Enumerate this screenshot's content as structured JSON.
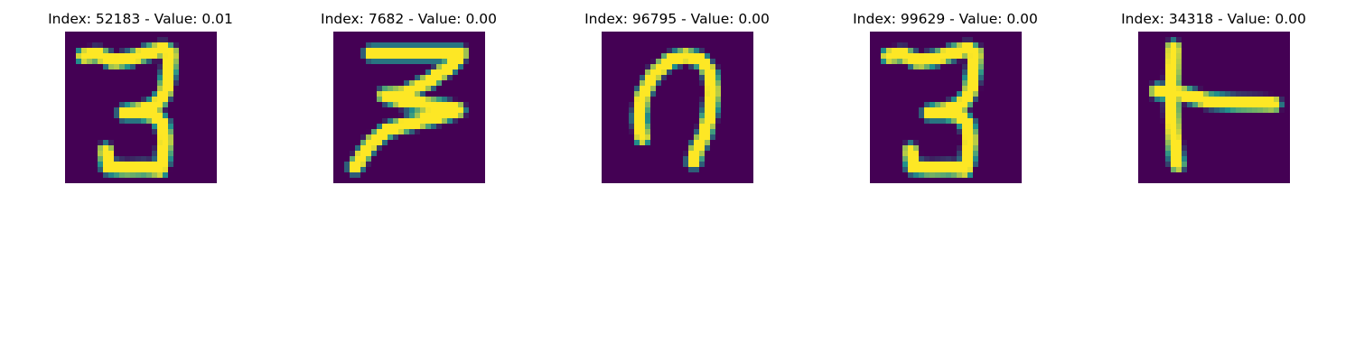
{
  "figure": {
    "panels": [
      {
        "title": "Index: 52183 - Value: 0.01",
        "index": 52183,
        "value": 0.01,
        "depicts": "handwritten-3"
      },
      {
        "title": "Index: 7682 - Value: 0.00",
        "index": 7682,
        "value": 0.0,
        "depicts": "handwritten-3-angular"
      },
      {
        "title": "Index: 96795 - Value: 0.00",
        "index": 96795,
        "value": 0.0,
        "depicts": "handwritten-n-arch"
      },
      {
        "title": "Index: 99629 - Value: 0.00",
        "index": 99629,
        "value": 0.0,
        "depicts": "handwritten-3"
      },
      {
        "title": "Index: 34318 - Value: 0.00",
        "index": 34318,
        "value": 0.0,
        "depicts": "handwritten-t-shape"
      }
    ],
    "colormap": {
      "name": "viridis",
      "background": "#440154",
      "mid": "#21918c",
      "foreground": "#fde725"
    }
  }
}
